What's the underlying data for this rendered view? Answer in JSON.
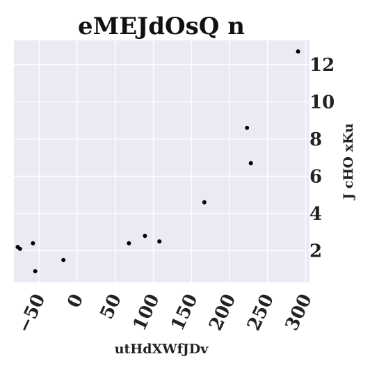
{
  "chart_data": {
    "type": "scatter",
    "title": "eMEJdOsQ n",
    "xlabel": "utHdXWfJDv",
    "ylabel": "J cHO xKu",
    "xlim": [
      -83,
      305
    ],
    "ylim": [
      0.3,
      13.3
    ],
    "xticks": [
      -50,
      0,
      50,
      100,
      150,
      200,
      250,
      300
    ],
    "yticks": [
      2,
      4,
      6,
      8,
      10,
      12
    ],
    "y_axis_side": "right",
    "grid": true,
    "background": "#eaeaf2",
    "marker_color": "#000000",
    "points": [
      {
        "x": -78,
        "y": 2.2
      },
      {
        "x": -75,
        "y": 2.1
      },
      {
        "x": -58,
        "y": 2.4
      },
      {
        "x": -55,
        "y": 0.9
      },
      {
        "x": -18,
        "y": 1.5
      },
      {
        "x": 68,
        "y": 2.4
      },
      {
        "x": 89,
        "y": 2.8
      },
      {
        "x": 108,
        "y": 2.5
      },
      {
        "x": 167,
        "y": 4.6
      },
      {
        "x": 223,
        "y": 8.6
      },
      {
        "x": 228,
        "y": 6.7
      },
      {
        "x": 290,
        "y": 12.7
      }
    ]
  }
}
